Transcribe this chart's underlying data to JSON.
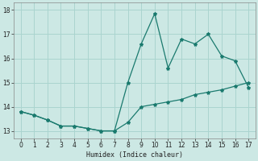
{
  "title": "",
  "xlabel": "Humidex (Indice chaleur)",
  "ylabel": "",
  "background_color": "#cce8e4",
  "grid_color": "#aad4cf",
  "line_color": "#1a7a6e",
  "xlim": [
    -0.5,
    17.5
  ],
  "ylim": [
    12.7,
    18.3
  ],
  "xticks": [
    0,
    1,
    2,
    3,
    4,
    5,
    6,
    7,
    8,
    9,
    10,
    11,
    12,
    13,
    14,
    15,
    16,
    17
  ],
  "yticks": [
    13,
    14,
    15,
    16,
    17,
    18
  ],
  "line1_x": [
    0,
    1,
    2,
    3,
    4,
    5,
    6,
    7,
    8,
    9,
    10,
    11,
    12,
    13,
    14,
    15,
    16,
    17
  ],
  "line1_y": [
    13.8,
    13.65,
    13.45,
    13.2,
    13.2,
    13.1,
    13.0,
    13.0,
    13.35,
    14.0,
    14.1,
    14.2,
    14.3,
    14.5,
    14.6,
    14.7,
    14.85,
    15.0
  ],
  "line2_x": [
    0,
    1,
    2,
    3,
    4,
    5,
    6,
    7,
    8,
    9,
    10,
    11,
    12,
    13,
    14,
    15,
    16,
    17
  ],
  "line2_y": [
    13.8,
    13.65,
    13.45,
    13.2,
    13.2,
    13.1,
    13.0,
    13.0,
    15.0,
    16.6,
    17.85,
    15.6,
    16.8,
    16.6,
    17.0,
    16.1,
    15.9,
    14.8
  ],
  "marker_x2": [
    0,
    1,
    2,
    3,
    4,
    5,
    6,
    7,
    8,
    9,
    10,
    11,
    12,
    13,
    14,
    15,
    16,
    17
  ],
  "marker2_y": [
    13.8,
    13.65,
    13.45,
    13.2,
    13.2,
    13.1,
    13.0,
    13.0,
    15.0,
    16.6,
    17.85,
    15.6,
    16.8,
    16.6,
    17.0,
    16.1,
    15.9,
    14.8
  ],
  "marker_x1": [
    0,
    1,
    2,
    3,
    4,
    5,
    6,
    7,
    8,
    9,
    10,
    11,
    12,
    13,
    14,
    15,
    16,
    17
  ],
  "marker1_y": [
    13.8,
    13.65,
    13.45,
    13.2,
    13.2,
    13.1,
    13.0,
    13.0,
    13.35,
    14.0,
    14.1,
    14.2,
    14.3,
    14.5,
    14.6,
    14.7,
    14.85,
    15.0
  ]
}
